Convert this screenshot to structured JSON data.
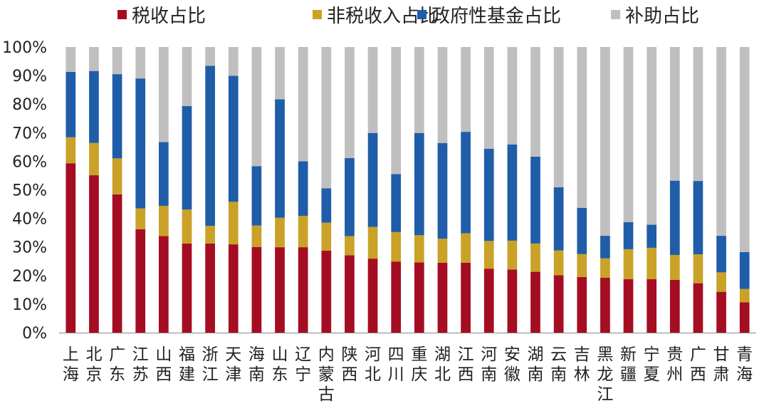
{
  "chart_data": {
    "type": "bar",
    "stacked": true,
    "grid": false,
    "legend_position": "top",
    "ylim": [
      0,
      100
    ],
    "yticks": [
      "0%",
      "10%",
      "20%",
      "30%",
      "40%",
      "50%",
      "60%",
      "70%",
      "80%",
      "90%",
      "100%"
    ],
    "categories": [
      "上海",
      "北京",
      "广东",
      "江苏",
      "山西",
      "福建",
      "浙江",
      "天津",
      "海南",
      "山东",
      "辽宁",
      "内蒙古",
      "陕西",
      "河北",
      "四川",
      "重庆",
      "湖北",
      "江西",
      "河南",
      "安徽",
      "湖南",
      "云南",
      "吉林",
      "黑龙江",
      "新疆",
      "宁夏",
      "贵州",
      "广西",
      "甘肃",
      "青海"
    ],
    "series": [
      {
        "name": "税收占比",
        "color": "#A50D22",
        "values": [
          59.3,
          55.1,
          48.4,
          36.2,
          33.8,
          31.2,
          31.2,
          30.9,
          30.0,
          29.9,
          29.9,
          28.7,
          27.1,
          25.9,
          24.9,
          24.6,
          24.5,
          24.5,
          22.4,
          22.1,
          21.3,
          20.1,
          19.5,
          19.2,
          18.7,
          18.7,
          18.5,
          17.3,
          14.3,
          10.6
        ]
      },
      {
        "name": "非税收入占比",
        "color": "#C9A227",
        "values": [
          9.1,
          11.3,
          12.6,
          7.3,
          10.6,
          11.9,
          6.2,
          14.9,
          7.5,
          10.3,
          11.0,
          9.8,
          6.7,
          11.1,
          10.3,
          9.5,
          8.4,
          10.3,
          9.7,
          10.1,
          9.9,
          8.7,
          8.0,
          6.8,
          10.5,
          11.0,
          8.7,
          10.1,
          6.8,
          4.7
        ]
      },
      {
        "name": "政府性基金占比",
        "color": "#1F5DA8",
        "values": [
          22.9,
          25.2,
          29.5,
          45.5,
          22.3,
          36.2,
          56.0,
          44.1,
          20.8,
          41.5,
          19.1,
          12.0,
          27.3,
          32.9,
          20.3,
          35.8,
          33.5,
          35.5,
          32.3,
          33.7,
          30.4,
          22.1,
          16.2,
          7.9,
          9.5,
          8.1,
          26.0,
          25.7,
          12.8,
          12.9
        ]
      },
      {
        "name": "补助占比",
        "color": "#BFBFBF",
        "values": [
          8.7,
          8.4,
          9.5,
          11.0,
          33.3,
          20.7,
          6.6,
          10.1,
          41.7,
          18.3,
          40.0,
          49.5,
          38.9,
          30.1,
          44.5,
          30.1,
          33.6,
          29.7,
          35.6,
          34.1,
          38.4,
          49.1,
          56.3,
          66.1,
          61.3,
          62.2,
          46.8,
          46.9,
          66.1,
          71.8
        ]
      }
    ]
  }
}
